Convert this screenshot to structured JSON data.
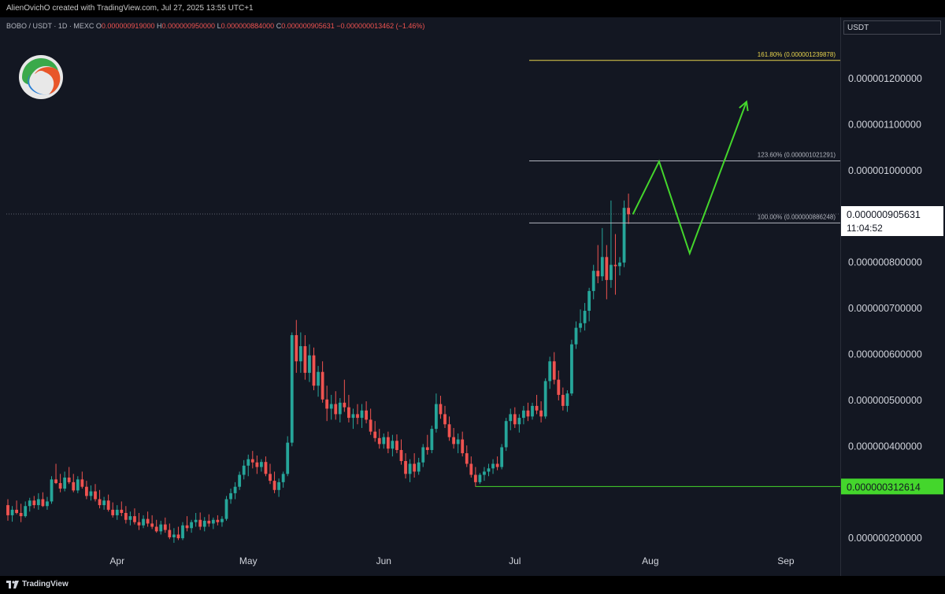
{
  "header": {
    "attribution": "AlienOvichO created with TradingView.com, Jul 27, 2025 13:55 UTC+1"
  },
  "symbol": {
    "name": "BOBO / USDT · 1D · MEXC",
    "open_label": "O",
    "open": "0.000000919000",
    "high_label": "H",
    "high": "0.000000950000",
    "low_label": "L",
    "low": "0.000000884000",
    "close_label": "C",
    "close": "0.000000905631",
    "change": "−0.000000013462 (−1.46%)"
  },
  "axis": {
    "currency": "USDT",
    "price_ticks": [
      {
        "label": "0.000001200000",
        "value": 1200
      },
      {
        "label": "0.000001100000",
        "value": 1100
      },
      {
        "label": "0.000001000000",
        "value": 1000
      },
      {
        "label": "0.000000800000",
        "value": 800
      },
      {
        "label": "0.000000700000",
        "value": 700
      },
      {
        "label": "0.000000600000",
        "value": 600
      },
      {
        "label": "0.000000500000",
        "value": 500
      },
      {
        "label": "0.000000400000",
        "value": 400
      },
      {
        "label": "0.000000200000",
        "value": 200
      }
    ],
    "time_ticks": [
      {
        "label": "Apr",
        "day": 25
      },
      {
        "label": "May",
        "day": 55
      },
      {
        "label": "Jun",
        "day": 86
      },
      {
        "label": "Jul",
        "day": 116
      },
      {
        "label": "Aug",
        "day": 147
      },
      {
        "label": "Sep",
        "day": 178
      }
    ]
  },
  "current_price": {
    "label": "0.000000905631",
    "countdown": "11:04:52",
    "value": 905.631
  },
  "support": {
    "label": "0.000000312614",
    "value": 312.614,
    "start_day": 107,
    "color": "#44d62c"
  },
  "fib_levels": [
    {
      "label": "161.80% (0.000001239878)",
      "value": 1239.878,
      "color": "#e8d44d"
    },
    {
      "label": "123.60% (0.000001021291)",
      "value": 1021.291,
      "color": "#b2b5be"
    },
    {
      "label": "100.00% (0.000000886248)",
      "value": 886.248,
      "color": "#b2b5be"
    }
  ],
  "projection": {
    "color": "#44d62c",
    "points": [
      [
        143,
        905
      ],
      [
        149,
        1020
      ],
      [
        156,
        820
      ],
      [
        169,
        1150
      ]
    ]
  },
  "colors": {
    "bull": "#26a69a",
    "bear": "#ef5350",
    "background": "#131722",
    "grid": "#1c2030"
  },
  "chart_data": {
    "type": "candlestick",
    "title": "BOBO / USDT · 1D · MEXC",
    "unit": "USDT (×1e-9)",
    "ylim": [
      130,
      1320
    ],
    "xlim": [
      0,
      200
    ],
    "grid": false,
    "candles": [
      {
        "day": 0,
        "o": 272,
        "h": 285,
        "l": 238,
        "c": 250
      },
      {
        "day": 1,
        "o": 250,
        "h": 270,
        "l": 236,
        "c": 262
      },
      {
        "day": 2,
        "o": 262,
        "h": 282,
        "l": 252,
        "c": 255
      },
      {
        "day": 3,
        "o": 255,
        "h": 275,
        "l": 235,
        "c": 248
      },
      {
        "day": 4,
        "o": 248,
        "h": 280,
        "l": 245,
        "c": 270
      },
      {
        "day": 5,
        "o": 270,
        "h": 288,
        "l": 258,
        "c": 282
      },
      {
        "day": 6,
        "o": 282,
        "h": 292,
        "l": 265,
        "c": 272
      },
      {
        "day": 7,
        "o": 272,
        "h": 298,
        "l": 262,
        "c": 285
      },
      {
        "day": 8,
        "o": 285,
        "h": 300,
        "l": 268,
        "c": 270
      },
      {
        "day": 9,
        "o": 270,
        "h": 290,
        "l": 262,
        "c": 280
      },
      {
        "day": 10,
        "o": 280,
        "h": 335,
        "l": 275,
        "c": 328
      },
      {
        "day": 11,
        "o": 328,
        "h": 362,
        "l": 318,
        "c": 320
      },
      {
        "day": 12,
        "o": 320,
        "h": 340,
        "l": 300,
        "c": 308
      },
      {
        "day": 13,
        "o": 308,
        "h": 345,
        "l": 302,
        "c": 332
      },
      {
        "day": 14,
        "o": 332,
        "h": 355,
        "l": 318,
        "c": 322
      },
      {
        "day": 15,
        "o": 322,
        "h": 340,
        "l": 300,
        "c": 304
      },
      {
        "day": 16,
        "o": 304,
        "h": 335,
        "l": 298,
        "c": 328
      },
      {
        "day": 17,
        "o": 328,
        "h": 345,
        "l": 308,
        "c": 312
      },
      {
        "day": 18,
        "o": 312,
        "h": 325,
        "l": 285,
        "c": 292
      },
      {
        "day": 19,
        "o": 292,
        "h": 315,
        "l": 282,
        "c": 302
      },
      {
        "day": 20,
        "o": 302,
        "h": 318,
        "l": 280,
        "c": 285
      },
      {
        "day": 21,
        "o": 285,
        "h": 305,
        "l": 265,
        "c": 272
      },
      {
        "day": 22,
        "o": 272,
        "h": 290,
        "l": 262,
        "c": 282
      },
      {
        "day": 23,
        "o": 282,
        "h": 295,
        "l": 258,
        "c": 262
      },
      {
        "day": 24,
        "o": 262,
        "h": 278,
        "l": 245,
        "c": 250
      },
      {
        "day": 25,
        "o": 250,
        "h": 272,
        "l": 240,
        "c": 262
      },
      {
        "day": 26,
        "o": 262,
        "h": 280,
        "l": 248,
        "c": 255
      },
      {
        "day": 27,
        "o": 255,
        "h": 270,
        "l": 232,
        "c": 240
      },
      {
        "day": 28,
        "o": 240,
        "h": 258,
        "l": 228,
        "c": 248
      },
      {
        "day": 29,
        "o": 248,
        "h": 265,
        "l": 230,
        "c": 235
      },
      {
        "day": 30,
        "o": 235,
        "h": 255,
        "l": 218,
        "c": 228
      },
      {
        "day": 31,
        "o": 228,
        "h": 250,
        "l": 222,
        "c": 242
      },
      {
        "day": 32,
        "o": 242,
        "h": 258,
        "l": 225,
        "c": 232
      },
      {
        "day": 33,
        "o": 232,
        "h": 250,
        "l": 220,
        "c": 225
      },
      {
        "day": 34,
        "o": 225,
        "h": 240,
        "l": 212,
        "c": 215
      },
      {
        "day": 35,
        "o": 215,
        "h": 238,
        "l": 208,
        "c": 230
      },
      {
        "day": 36,
        "o": 230,
        "h": 245,
        "l": 212,
        "c": 218
      },
      {
        "day": 37,
        "o": 218,
        "h": 232,
        "l": 198,
        "c": 202
      },
      {
        "day": 38,
        "o": 202,
        "h": 222,
        "l": 190,
        "c": 208
      },
      {
        "day": 39,
        "o": 208,
        "h": 225,
        "l": 196,
        "c": 200
      },
      {
        "day": 40,
        "o": 200,
        "h": 235,
        "l": 196,
        "c": 228
      },
      {
        "day": 41,
        "o": 228,
        "h": 248,
        "l": 215,
        "c": 222
      },
      {
        "day": 42,
        "o": 222,
        "h": 240,
        "l": 212,
        "c": 235
      },
      {
        "day": 43,
        "o": 235,
        "h": 255,
        "l": 225,
        "c": 240
      },
      {
        "day": 44,
        "o": 240,
        "h": 256,
        "l": 218,
        "c": 225
      },
      {
        "day": 45,
        "o": 225,
        "h": 246,
        "l": 215,
        "c": 238
      },
      {
        "day": 46,
        "o": 238,
        "h": 252,
        "l": 225,
        "c": 232
      },
      {
        "day": 47,
        "o": 232,
        "h": 245,
        "l": 220,
        "c": 240
      },
      {
        "day": 48,
        "o": 240,
        "h": 250,
        "l": 228,
        "c": 235
      },
      {
        "day": 49,
        "o": 235,
        "h": 248,
        "l": 225,
        "c": 242
      },
      {
        "day": 50,
        "o": 242,
        "h": 292,
        "l": 238,
        "c": 285
      },
      {
        "day": 51,
        "o": 285,
        "h": 308,
        "l": 275,
        "c": 298
      },
      {
        "day": 52,
        "o": 298,
        "h": 322,
        "l": 285,
        "c": 312
      },
      {
        "day": 53,
        "o": 312,
        "h": 345,
        "l": 305,
        "c": 338
      },
      {
        "day": 54,
        "o": 338,
        "h": 370,
        "l": 328,
        "c": 358
      },
      {
        "day": 55,
        "o": 358,
        "h": 382,
        "l": 335,
        "c": 372
      },
      {
        "day": 56,
        "o": 372,
        "h": 390,
        "l": 352,
        "c": 365
      },
      {
        "day": 57,
        "o": 365,
        "h": 380,
        "l": 340,
        "c": 355
      },
      {
        "day": 58,
        "o": 355,
        "h": 372,
        "l": 345,
        "c": 366
      },
      {
        "day": 59,
        "o": 366,
        "h": 378,
        "l": 335,
        "c": 340
      },
      {
        "day": 60,
        "o": 340,
        "h": 362,
        "l": 318,
        "c": 325
      },
      {
        "day": 61,
        "o": 325,
        "h": 345,
        "l": 298,
        "c": 305
      },
      {
        "day": 62,
        "o": 305,
        "h": 330,
        "l": 290,
        "c": 322
      },
      {
        "day": 63,
        "o": 322,
        "h": 345,
        "l": 310,
        "c": 340
      },
      {
        "day": 64,
        "o": 340,
        "h": 422,
        "l": 335,
        "c": 408
      },
      {
        "day": 65,
        "o": 408,
        "h": 648,
        "l": 400,
        "c": 642
      },
      {
        "day": 66,
        "o": 642,
        "h": 675,
        "l": 560,
        "c": 585
      },
      {
        "day": 67,
        "o": 585,
        "h": 648,
        "l": 560,
        "c": 618
      },
      {
        "day": 68,
        "o": 618,
        "h": 642,
        "l": 545,
        "c": 560
      },
      {
        "day": 69,
        "o": 560,
        "h": 622,
        "l": 540,
        "c": 598
      },
      {
        "day": 70,
        "o": 598,
        "h": 615,
        "l": 522,
        "c": 532
      },
      {
        "day": 71,
        "o": 532,
        "h": 575,
        "l": 508,
        "c": 562
      },
      {
        "day": 72,
        "o": 562,
        "h": 585,
        "l": 495,
        "c": 502
      },
      {
        "day": 73,
        "o": 502,
        "h": 532,
        "l": 455,
        "c": 482
      },
      {
        "day": 74,
        "o": 482,
        "h": 512,
        "l": 458,
        "c": 492
      },
      {
        "day": 75,
        "o": 492,
        "h": 520,
        "l": 458,
        "c": 470
      },
      {
        "day": 76,
        "o": 470,
        "h": 505,
        "l": 452,
        "c": 495
      },
      {
        "day": 77,
        "o": 495,
        "h": 545,
        "l": 475,
        "c": 485
      },
      {
        "day": 78,
        "o": 485,
        "h": 512,
        "l": 452,
        "c": 462
      },
      {
        "day": 79,
        "o": 462,
        "h": 482,
        "l": 438,
        "c": 470
      },
      {
        "day": 80,
        "o": 470,
        "h": 492,
        "l": 448,
        "c": 462
      },
      {
        "day": 81,
        "o": 462,
        "h": 492,
        "l": 440,
        "c": 478
      },
      {
        "day": 82,
        "o": 478,
        "h": 498,
        "l": 450,
        "c": 458
      },
      {
        "day": 83,
        "o": 458,
        "h": 482,
        "l": 425,
        "c": 432
      },
      {
        "day": 84,
        "o": 432,
        "h": 455,
        "l": 410,
        "c": 418
      },
      {
        "day": 85,
        "o": 418,
        "h": 438,
        "l": 395,
        "c": 405
      },
      {
        "day": 86,
        "o": 405,
        "h": 428,
        "l": 395,
        "c": 420
      },
      {
        "day": 87,
        "o": 420,
        "h": 432,
        "l": 385,
        "c": 395
      },
      {
        "day": 88,
        "o": 395,
        "h": 425,
        "l": 378,
        "c": 412
      },
      {
        "day": 89,
        "o": 412,
        "h": 426,
        "l": 385,
        "c": 392
      },
      {
        "day": 90,
        "o": 392,
        "h": 415,
        "l": 360,
        "c": 368
      },
      {
        "day": 91,
        "o": 368,
        "h": 385,
        "l": 330,
        "c": 340
      },
      {
        "day": 92,
        "o": 340,
        "h": 372,
        "l": 322,
        "c": 362
      },
      {
        "day": 93,
        "o": 362,
        "h": 385,
        "l": 332,
        "c": 345
      },
      {
        "day": 94,
        "o": 345,
        "h": 375,
        "l": 338,
        "c": 365
      },
      {
        "day": 95,
        "o": 365,
        "h": 405,
        "l": 355,
        "c": 398
      },
      {
        "day": 96,
        "o": 398,
        "h": 425,
        "l": 382,
        "c": 392
      },
      {
        "day": 97,
        "o": 392,
        "h": 445,
        "l": 385,
        "c": 438
      },
      {
        "day": 98,
        "o": 438,
        "h": 515,
        "l": 430,
        "c": 492
      },
      {
        "day": 99,
        "o": 492,
        "h": 510,
        "l": 460,
        "c": 470
      },
      {
        "day": 100,
        "o": 470,
        "h": 488,
        "l": 440,
        "c": 448
      },
      {
        "day": 101,
        "o": 448,
        "h": 465,
        "l": 412,
        "c": 420
      },
      {
        "day": 102,
        "o": 420,
        "h": 440,
        "l": 395,
        "c": 405
      },
      {
        "day": 103,
        "o": 405,
        "h": 428,
        "l": 385,
        "c": 415
      },
      {
        "day": 104,
        "o": 415,
        "h": 432,
        "l": 378,
        "c": 385
      },
      {
        "day": 105,
        "o": 385,
        "h": 402,
        "l": 355,
        "c": 362
      },
      {
        "day": 106,
        "o": 362,
        "h": 378,
        "l": 332,
        "c": 338
      },
      {
        "day": 107,
        "o": 338,
        "h": 355,
        "l": 312,
        "c": 322
      },
      {
        "day": 108,
        "o": 322,
        "h": 342,
        "l": 318,
        "c": 338
      },
      {
        "day": 109,
        "o": 338,
        "h": 355,
        "l": 325,
        "c": 345
      },
      {
        "day": 110,
        "o": 345,
        "h": 362,
        "l": 335,
        "c": 352
      },
      {
        "day": 111,
        "o": 352,
        "h": 372,
        "l": 340,
        "c": 362
      },
      {
        "day": 112,
        "o": 362,
        "h": 378,
        "l": 348,
        "c": 355
      },
      {
        "day": 113,
        "o": 355,
        "h": 405,
        "l": 350,
        "c": 398
      },
      {
        "day": 114,
        "o": 398,
        "h": 462,
        "l": 390,
        "c": 455
      },
      {
        "day": 115,
        "o": 455,
        "h": 482,
        "l": 435,
        "c": 470
      },
      {
        "day": 116,
        "o": 470,
        "h": 485,
        "l": 440,
        "c": 448
      },
      {
        "day": 117,
        "o": 448,
        "h": 470,
        "l": 430,
        "c": 462
      },
      {
        "day": 118,
        "o": 462,
        "h": 488,
        "l": 448,
        "c": 478
      },
      {
        "day": 119,
        "o": 478,
        "h": 495,
        "l": 455,
        "c": 465
      },
      {
        "day": 120,
        "o": 465,
        "h": 495,
        "l": 458,
        "c": 488
      },
      {
        "day": 121,
        "o": 488,
        "h": 512,
        "l": 470,
        "c": 478
      },
      {
        "day": 122,
        "o": 478,
        "h": 498,
        "l": 452,
        "c": 465
      },
      {
        "day": 123,
        "o": 465,
        "h": 548,
        "l": 460,
        "c": 542
      },
      {
        "day": 124,
        "o": 542,
        "h": 595,
        "l": 525,
        "c": 585
      },
      {
        "day": 125,
        "o": 585,
        "h": 605,
        "l": 535,
        "c": 545
      },
      {
        "day": 126,
        "o": 545,
        "h": 565,
        "l": 500,
        "c": 512
      },
      {
        "day": 127,
        "o": 512,
        "h": 528,
        "l": 478,
        "c": 488
      },
      {
        "day": 128,
        "o": 488,
        "h": 522,
        "l": 475,
        "c": 515
      },
      {
        "day": 129,
        "o": 515,
        "h": 632,
        "l": 510,
        "c": 622
      },
      {
        "day": 130,
        "o": 622,
        "h": 672,
        "l": 612,
        "c": 658
      },
      {
        "day": 131,
        "o": 658,
        "h": 698,
        "l": 648,
        "c": 668
      },
      {
        "day": 132,
        "o": 668,
        "h": 712,
        "l": 652,
        "c": 695
      },
      {
        "day": 133,
        "o": 695,
        "h": 745,
        "l": 672,
        "c": 738
      },
      {
        "day": 134,
        "o": 738,
        "h": 795,
        "l": 720,
        "c": 782
      },
      {
        "day": 135,
        "o": 782,
        "h": 838,
        "l": 755,
        "c": 770
      },
      {
        "day": 136,
        "o": 770,
        "h": 875,
        "l": 760,
        "c": 812
      },
      {
        "day": 137,
        "o": 812,
        "h": 838,
        "l": 720,
        "c": 762
      },
      {
        "day": 138,
        "o": 762,
        "h": 935,
        "l": 745,
        "c": 795
      },
      {
        "day": 139,
        "o": 795,
        "h": 862,
        "l": 730,
        "c": 792
      },
      {
        "day": 140,
        "o": 792,
        "h": 812,
        "l": 772,
        "c": 800
      },
      {
        "day": 141,
        "o": 800,
        "h": 935,
        "l": 790,
        "c": 919
      },
      {
        "day": 142,
        "o": 919,
        "h": 950,
        "l": 884,
        "c": 905
      }
    ]
  }
}
